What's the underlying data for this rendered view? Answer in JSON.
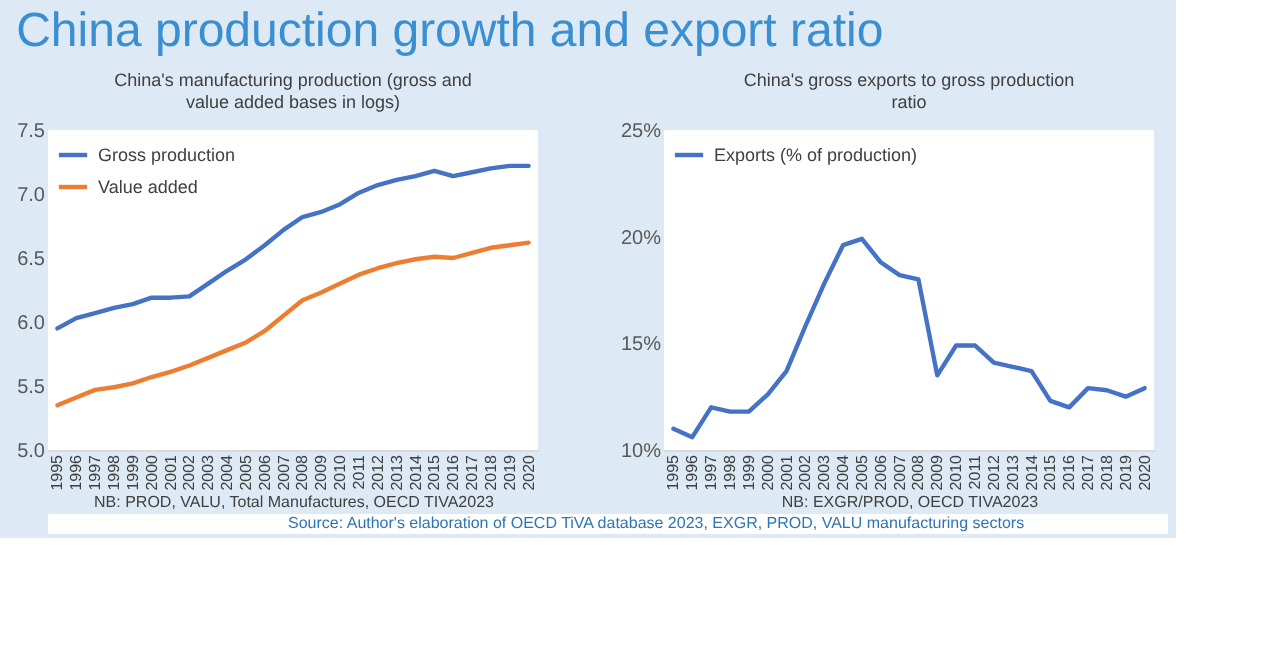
{
  "chart_data": [
    {
      "type": "line",
      "title": "China's manufacturing production (gross and value added bases in logs)",
      "xlabel": "NB: PROD, VALU, Total Manufactures, OECD TIVA2023",
      "annotations": [
        "China production growth and export ratio",
        "Source: Author's elaboration of OECD TiVA database 2023, EXGR, PROD, VALU manufacturing sectors"
      ],
      "categories": [
        "1995",
        "1996",
        "1997",
        "1998",
        "1999",
        "2000",
        "2001",
        "2002",
        "2003",
        "2004",
        "2005",
        "2006",
        "2007",
        "2008",
        "2009",
        "2010",
        "2011",
        "2012",
        "2013",
        "2014",
        "2015",
        "2016",
        "2017",
        "2018",
        "2019",
        "2020"
      ],
      "series": [
        {
          "name": "Gross production",
          "color": "#4472c4",
          "values": [
            5.95,
            6.03,
            6.07,
            6.11,
            6.14,
            6.19,
            6.19,
            6.2,
            6.3,
            6.4,
            6.49,
            6.6,
            6.72,
            6.82,
            6.86,
            6.92,
            7.01,
            7.07,
            7.11,
            7.14,
            7.18,
            7.14,
            7.17,
            7.2,
            7.22,
            7.22
          ]
        },
        {
          "name": "Value added",
          "color": "#ed7d31",
          "values": [
            5.35,
            5.41,
            5.47,
            5.49,
            5.52,
            5.57,
            5.61,
            5.66,
            5.72,
            5.78,
            5.84,
            5.93,
            6.05,
            6.17,
            6.23,
            6.3,
            6.37,
            6.42,
            6.46,
            6.49,
            6.51,
            6.5,
            6.54,
            6.58,
            6.6,
            6.62
          ]
        }
      ],
      "ylim": [
        5.0,
        7.5
      ],
      "yticks": [
        {
          "value": 5.0,
          "label": "5.0"
        },
        {
          "value": 5.5,
          "label": "5.5"
        },
        {
          "value": 6.0,
          "label": "6.0"
        },
        {
          "value": 6.5,
          "label": "6.5"
        },
        {
          "value": 7.0,
          "label": "7.0"
        },
        {
          "value": 7.5,
          "label": "7.5"
        }
      ],
      "legend": "top left",
      "grid": false
    },
    {
      "type": "line",
      "title": "China's gross exports to gross production ratio",
      "xlabel": "NB: EXGR/PROD, OECD TIVA2023",
      "categories": [
        "1995",
        "1996",
        "1997",
        "1998",
        "1999",
        "2000",
        "2001",
        "2002",
        "2003",
        "2004",
        "2005",
        "2006",
        "2007",
        "2008",
        "2009",
        "2010",
        "2011",
        "2012",
        "2013",
        "2014",
        "2015",
        "2016",
        "2017",
        "2018",
        "2019",
        "2020"
      ],
      "series": [
        {
          "name": "Exports (% of production)",
          "color": "#4472c4",
          "values": [
            11.0,
            10.6,
            12.0,
            11.8,
            11.8,
            12.6,
            13.7,
            15.8,
            17.8,
            19.6,
            19.9,
            18.8,
            18.2,
            18.0,
            13.5,
            14.9,
            14.9,
            14.1,
            13.9,
            13.7,
            12.3,
            12.0,
            12.9,
            12.8,
            12.5,
            12.9
          ]
        }
      ],
      "ylim": [
        10,
        25
      ],
      "yticks": [
        {
          "value": 10,
          "label": "10%"
        },
        {
          "value": 15,
          "label": "15%"
        },
        {
          "value": 20,
          "label": "20%"
        },
        {
          "value": 25,
          "label": "25%"
        }
      ],
      "legend": "top left",
      "grid": false
    }
  ]
}
